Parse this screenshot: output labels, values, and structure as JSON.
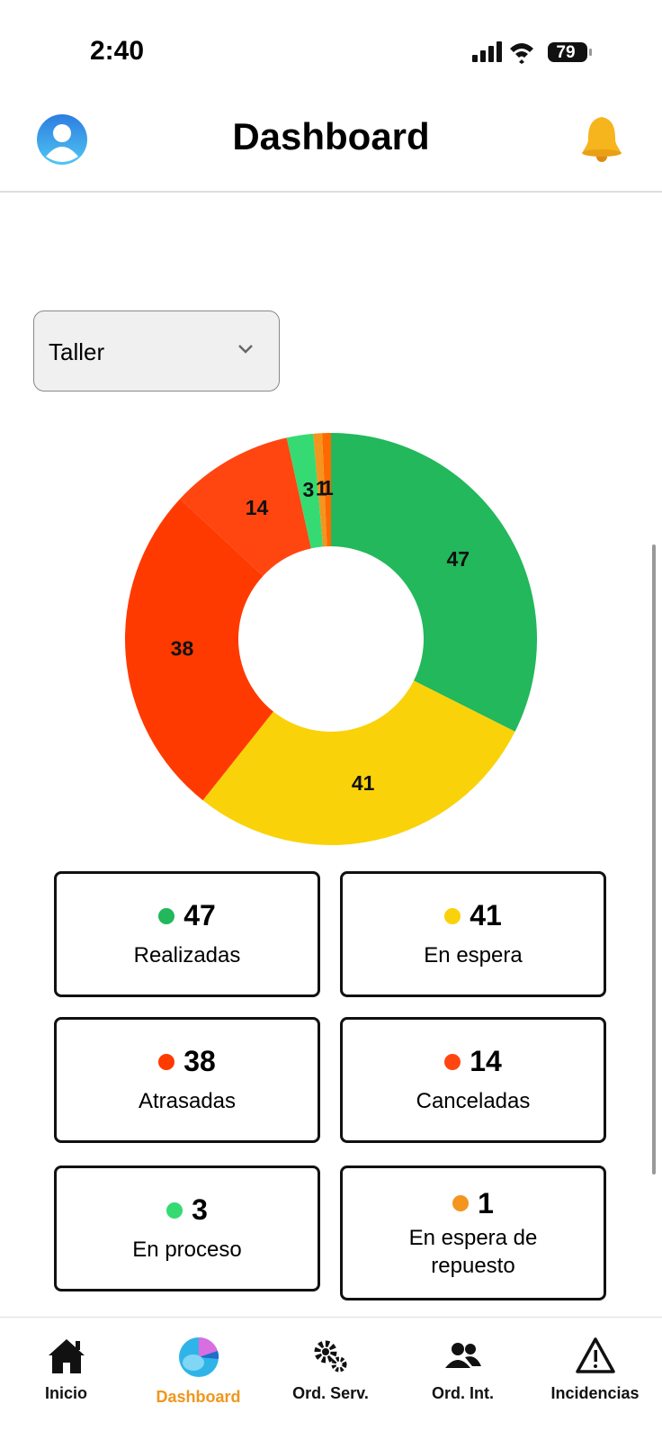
{
  "status_bar": {
    "time": "2:40",
    "battery": "79"
  },
  "header": {
    "title": "Dashboard"
  },
  "filter": {
    "selected": "Taller"
  },
  "chart_data": {
    "type": "donut",
    "categories": [
      "Realizadas",
      "En espera",
      "Atrasadas",
      "Canceladas",
      "En proceso",
      "En espera de repuesto",
      null
    ],
    "values": [
      47,
      41,
      38,
      14,
      3,
      1,
      1
    ],
    "colors": [
      "#22b85b",
      "#f9d20a",
      "#ff3a00",
      "#ff4611",
      "#36da72",
      "#f3951f",
      "#ff6a00"
    ]
  },
  "nav": {
    "items": [
      "Inicio",
      "Dashboard",
      "Ord. Serv.",
      "Ord. Int.",
      "Incidencias"
    ],
    "active": 1
  }
}
